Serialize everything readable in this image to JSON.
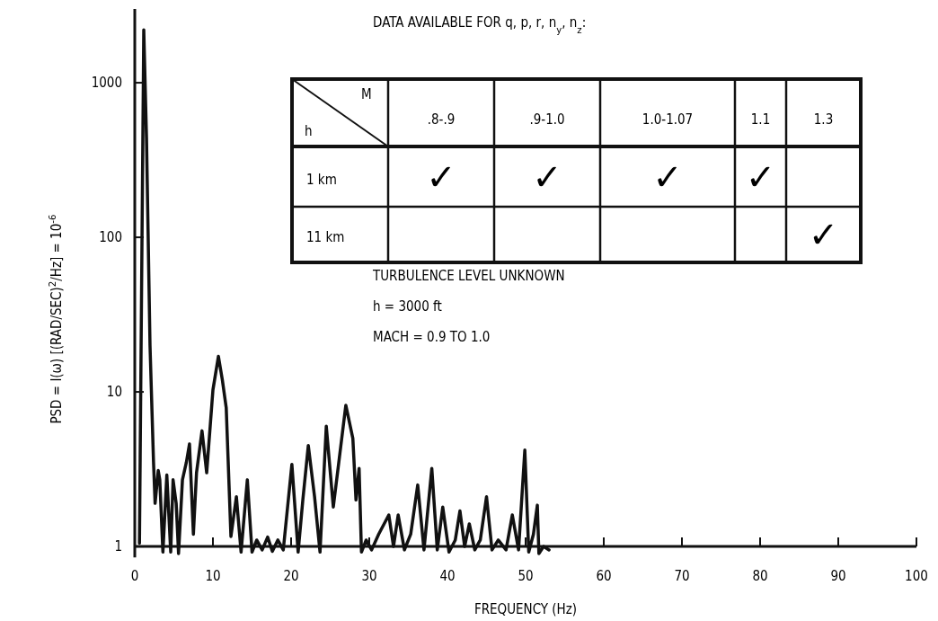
{
  "chart_data": [
    {
      "type": "line",
      "xlabel": "FREQUENCY (Hz)",
      "ylabel": "PSD = I(ω) [(RAD/SEC)$^{2}$/Hz] = 10$^{-6}$",
      "log": "y",
      "xlim": [
        0,
        100
      ],
      "xticks": [
        0,
        10,
        20,
        30,
        40,
        50,
        60,
        70,
        80,
        90,
        100
      ],
      "ylim": [
        0.85,
        3000
      ],
      "yticks": [
        1,
        10,
        100,
        1000
      ],
      "line_style": "solid",
      "marker": "none",
      "annotations": [
        "TURBULENCE LEVEL UNKNOWN",
        "h = 3000 ft",
        "MACH = 0.9 TO 1.0"
      ],
      "series": [
        {
          "color": "#111111",
          "x": [
            0.6,
            1.15,
            1.5,
            1.95,
            2.4,
            2.6,
            3.0,
            3.2,
            3.6,
            4.1,
            4.6,
            4.9,
            5.3,
            5.6,
            6.1,
            6.6,
            7.0,
            7.5,
            7.9,
            8.6,
            9.2,
            10.0,
            10.7,
            11.2,
            11.7,
            12.3,
            13.0,
            13.6,
            14.4,
            15.0,
            15.6,
            16.3,
            17.0,
            17.6,
            18.3,
            19.0,
            20.1,
            20.9,
            21.5,
            22.2,
            23.0,
            23.7,
            24.5,
            25.4,
            27.0,
            27.9,
            28.3,
            28.7,
            29.0,
            29.6,
            30.3,
            31.2,
            32.5,
            33.1,
            33.7,
            34.5,
            35.3,
            36.2,
            37.0,
            38.0,
            38.7,
            39.4,
            40.2,
            41.0,
            41.6,
            42.2,
            42.8,
            43.5,
            44.2,
            45.0,
            45.7,
            46.5,
            47.5,
            48.3,
            49.1,
            49.9,
            50.4,
            51.0,
            51.5,
            51.7,
            52.3,
            53.0
          ],
          "values": [
            1.05,
            2200,
            440,
            20,
            3.5,
            1.9,
            3.1,
            2.7,
            0.92,
            2.9,
            0.92,
            2.7,
            1.9,
            0.9,
            2.7,
            3.5,
            4.6,
            1.2,
            3.0,
            5.6,
            3.0,
            10.3,
            17,
            12,
            7.9,
            1.16,
            2.1,
            0.92,
            2.7,
            0.92,
            1.1,
            0.95,
            1.15,
            0.93,
            1.1,
            0.95,
            3.4,
            0.92,
            2.0,
            4.5,
            2.1,
            0.92,
            6.0,
            1.8,
            8.2,
            5.0,
            2.0,
            3.2,
            0.92,
            1.1,
            0.95,
            1.2,
            1.6,
            1.0,
            1.6,
            0.95,
            1.2,
            2.5,
            0.95,
            3.2,
            0.95,
            1.8,
            0.92,
            1.1,
            1.7,
            1.0,
            1.4,
            0.95,
            1.1,
            2.1,
            0.95,
            1.1,
            0.95,
            1.6,
            0.95,
            4.2,
            0.92,
            1.2,
            1.85,
            0.9,
            1.0,
            0.95
          ]
        }
      ]
    },
    {
      "type": "other",
      "title": "DATA AVAILABLE FOR q, p, r, n$_{y}$, n$_{z}$:",
      "xlabel": "M",
      "ylabel": "h",
      "categories": [
        ".8-.9",
        ".9-1.0",
        "1.0-1.07",
        "1.1",
        "1.3"
      ],
      "y_categories": [
        "1 km",
        "11 km"
      ],
      "cell_labels": [
        [
          "✓",
          "✓",
          "✓",
          "✓",
          null
        ],
        [
          null,
          null,
          null,
          null,
          "✓"
        ]
      ]
    }
  ]
}
